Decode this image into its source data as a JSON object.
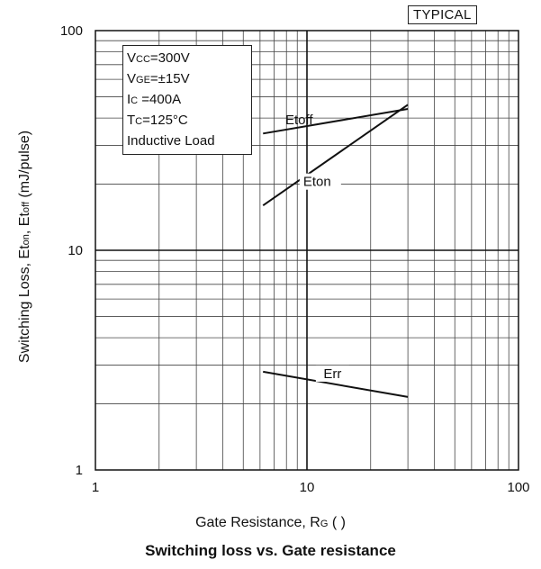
{
  "chart_data": {
    "type": "line",
    "title": "Switching loss vs. Gate resistance",
    "badge": "TYPICAL",
    "xlabel": {
      "main": "Gate Resistance, R",
      "sub": "G",
      "tail": " (  )"
    },
    "ylabel": {
      "p1": "Switching Loss, Et",
      "s1": "on",
      "p2": ", Et",
      "s2": "off",
      "p3": " (mJ/pulse)"
    },
    "xscale": "log",
    "yscale": "log",
    "xlim": [
      1,
      100
    ],
    "ylim": [
      1,
      100
    ],
    "x_ticks": [
      "1",
      "10",
      "100"
    ],
    "y_ticks": [
      "1",
      "10",
      "100"
    ],
    "grid": true,
    "conditions": [
      {
        "main": "V",
        "sub": "CC",
        "rest": "=300V"
      },
      {
        "main": "V",
        "sub": "GE",
        "rest": "=±15V"
      },
      {
        "main": "I",
        "sub": "C",
        "rest": " =400A"
      },
      {
        "main": "T",
        "sub": "C",
        "rest": "=125°C"
      },
      {
        "main": "Inductive Load",
        "sub": "",
        "rest": ""
      }
    ],
    "series": [
      {
        "name": "Etoff",
        "x": [
          6.2,
          30
        ],
        "y": [
          34,
          44
        ]
      },
      {
        "name": "Eton",
        "x": [
          6.2,
          30
        ],
        "y": [
          16,
          46
        ]
      },
      {
        "name": "Err",
        "x": [
          6.2,
          30
        ],
        "y": [
          2.8,
          2.15
        ]
      }
    ]
  }
}
